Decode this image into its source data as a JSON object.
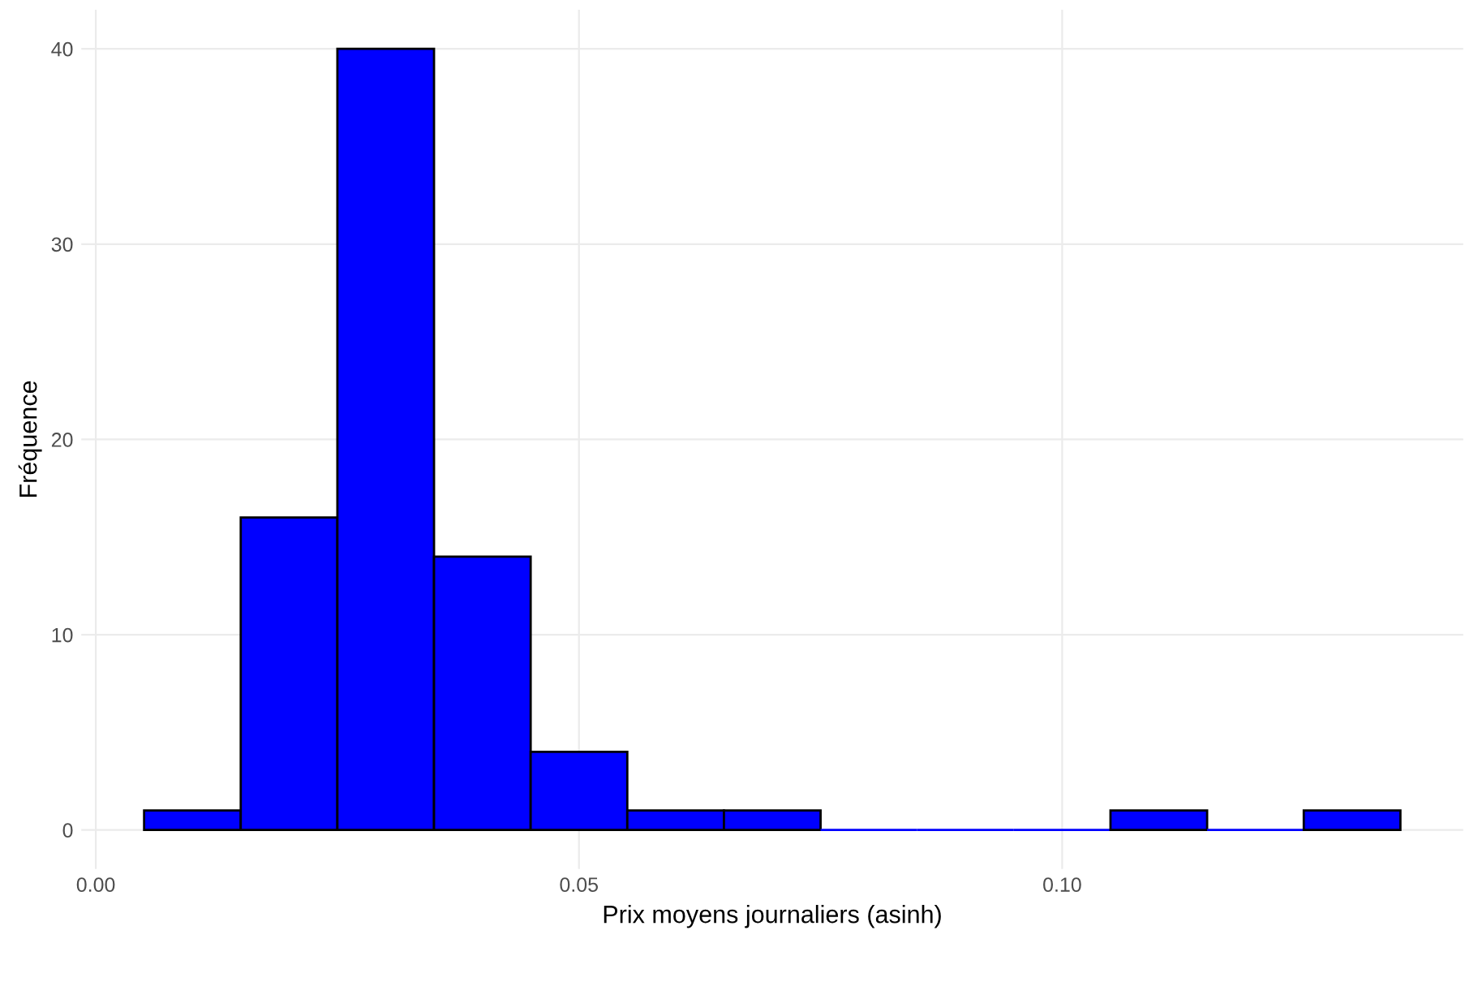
{
  "chart_data": {
    "type": "histogram",
    "xlabel": "Prix moyens journaliers (asinh)",
    "ylabel": "Fréquence",
    "bins": [
      0.005,
      0.015,
      0.025,
      0.035,
      0.045,
      0.055,
      0.065,
      0.075,
      0.085,
      0.095,
      0.105,
      0.115,
      0.125,
      0.135
    ],
    "values": [
      1,
      16,
      40,
      14,
      4,
      1,
      1,
      0,
      0,
      0,
      1,
      0,
      1
    ],
    "color": "#0000ff",
    "xlim": [
      -0.0015,
      0.1415
    ],
    "ylim": [
      -2,
      42
    ],
    "xticks": [
      {
        "value": 0,
        "label": "0.00"
      },
      0.05,
      {
        "value": 0.1,
        "label": "0.10"
      }
    ],
    "yticks": [
      0,
      10,
      20,
      30,
      40
    ],
    "grid": true
  }
}
